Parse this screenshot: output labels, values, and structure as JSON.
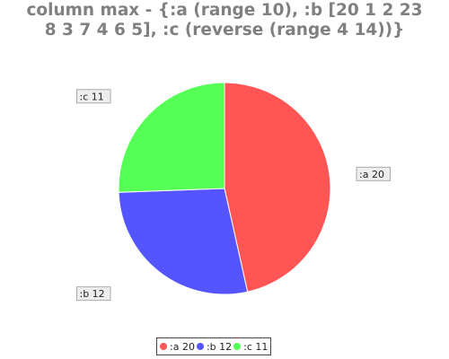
{
  "chart_data": {
    "type": "pie",
    "title_lines": [
      "column max - {:a (range 10), :b [20 1 2 23",
      "8 3 7 4 6 5], :c (reverse (range 4 14))}"
    ],
    "slices": [
      {
        "name": ":a",
        "value": 20,
        "label": ":a 20",
        "color": "#ff5555"
      },
      {
        "name": ":b",
        "value": 12,
        "label": ":b 12",
        "color": "#5555ff"
      },
      {
        "name": ":c",
        "value": 11,
        "label": ":c 11",
        "color": "#55ff55"
      }
    ],
    "legend_position": "bottom"
  }
}
